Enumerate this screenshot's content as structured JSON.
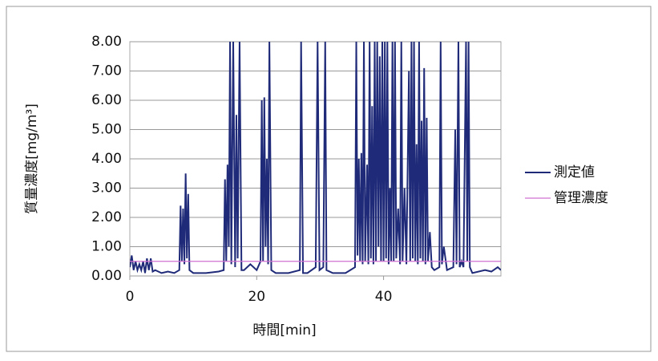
{
  "chart_data": {
    "type": "line",
    "x_label": "時間[min]",
    "y_label": "質量濃度[mg/m³]",
    "xlim": [
      0,
      58.5
    ],
    "xticks": [
      0,
      20,
      40
    ],
    "ylim": [
      0,
      8
    ],
    "yticks": [
      {
        "value": 0,
        "label": "0.00"
      },
      {
        "value": 1,
        "label": "1.00"
      },
      {
        "value": 2,
        "label": "2.00"
      },
      {
        "value": 3,
        "label": "3.00"
      },
      {
        "value": 4,
        "label": "4.00"
      },
      {
        "value": 5,
        "label": "5.00"
      },
      {
        "value": 6,
        "label": "6.00"
      },
      {
        "value": 7,
        "label": "7.00"
      },
      {
        "value": 8,
        "label": "8.00"
      }
    ],
    "grid": true,
    "legend_position": "right",
    "series": [
      {
        "name": "測定値",
        "color": "#1f2a78",
        "x": [
          0,
          0.3,
          0.6,
          0.9,
          1.2,
          1.5,
          1.8,
          2.1,
          2.4,
          2.7,
          3,
          3.3,
          3.6,
          4,
          5,
          6,
          7,
          7.8,
          8,
          8.2,
          8.4,
          8.6,
          8.8,
          9,
          9.2,
          9.4,
          10,
          12,
          14,
          14.8,
          15,
          15.2,
          15.4,
          15.6,
          15.8,
          16,
          16.3,
          16.6,
          16.8,
          17,
          17.3,
          17.6,
          18,
          19,
          20,
          20.6,
          20.8,
          21,
          21.2,
          21.4,
          21.6,
          21.8,
          22,
          22.3,
          23,
          25,
          26.8,
          27,
          27.3,
          28,
          29.3,
          29.6,
          29.9,
          30.5,
          30.8,
          31,
          32,
          34,
          35.5,
          35.7,
          35.9,
          36.1,
          36.3,
          36.5,
          36.7,
          36.9,
          37.1,
          37.4,
          37.6,
          37.8,
          38,
          38.2,
          38.4,
          38.6,
          38.8,
          39,
          39.2,
          39.4,
          39.6,
          39.8,
          40,
          40.2,
          40.4,
          40.6,
          40.8,
          41,
          41.2,
          41.4,
          41.6,
          41.8,
          42,
          42.3,
          42.6,
          42.8,
          43,
          43.3,
          43.6,
          44,
          44.2,
          44.4,
          44.6,
          44.8,
          45,
          45.2,
          45.4,
          45.6,
          45.8,
          46,
          46.2,
          46.4,
          46.6,
          46.8,
          47,
          47.3,
          47.6,
          48,
          48.8,
          49,
          49.2,
          49.5,
          50,
          51,
          51.3,
          51.5,
          51.8,
          52,
          52.3,
          52.6,
          53,
          53.2,
          53.4,
          53.6,
          54,
          56,
          57,
          58,
          58.5
        ],
        "values": [
          0.3,
          0.7,
          0.2,
          0.5,
          0.2,
          0.4,
          0.2,
          0.5,
          0.1,
          0.6,
          0.2,
          0.6,
          0.15,
          0.2,
          0.1,
          0.15,
          0.1,
          0.2,
          2.4,
          0.5,
          2.3,
          0.4,
          3.5,
          0.6,
          2.8,
          0.2,
          0.1,
          0.1,
          0.15,
          0.2,
          3.3,
          0.5,
          3.8,
          1,
          8,
          0.4,
          8,
          0.3,
          5.5,
          0.6,
          8,
          0.2,
          0.2,
          0.4,
          0.2,
          0.5,
          6,
          0.5,
          6.1,
          1,
          4,
          0.4,
          8,
          0.2,
          0.1,
          0.1,
          0.2,
          8,
          0.1,
          0.1,
          0.3,
          8,
          0.2,
          0.3,
          8,
          0.2,
          0.1,
          0.1,
          0.3,
          8,
          0.7,
          4,
          0.5,
          4.2,
          0.4,
          8,
          0.5,
          3.8,
          0.4,
          8,
          0.6,
          5.8,
          0.4,
          8,
          0.5,
          8,
          1,
          7.5,
          0.5,
          8,
          0.5,
          8,
          0.6,
          8,
          0.4,
          3,
          0.5,
          8,
          0.5,
          8,
          0.6,
          2.3,
          0.4,
          8,
          0.5,
          3,
          0.4,
          7,
          0.5,
          8,
          0.6,
          8,
          0.5,
          4.5,
          0.4,
          8,
          0.6,
          5.3,
          0.5,
          7.1,
          0.4,
          5.4,
          0.5,
          1.5,
          0.3,
          0.2,
          0.3,
          8,
          0.4,
          1,
          0.2,
          0.3,
          5,
          0.4,
          8,
          0.3,
          0.5,
          0.3,
          8,
          0.5,
          8,
          0.3,
          0.1,
          0.2,
          0.15,
          0.3,
          0.2
        ]
      },
      {
        "name": "管理濃度",
        "color": "#d070d0",
        "x": [
          0,
          58.5
        ],
        "values": [
          0.5,
          0.5
        ]
      }
    ]
  }
}
